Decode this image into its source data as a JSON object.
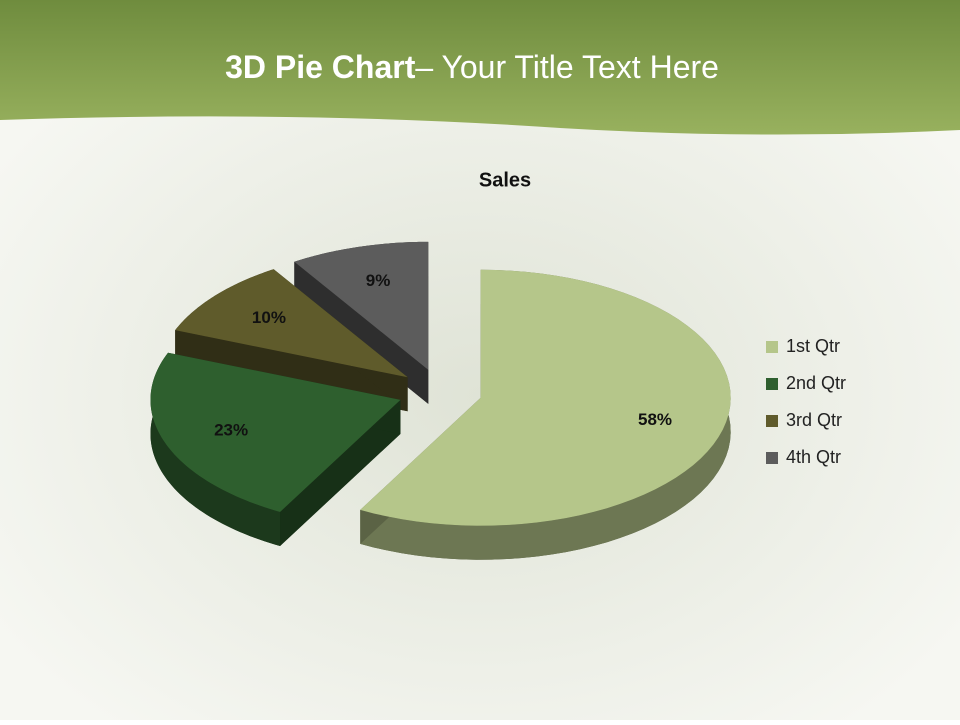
{
  "slide": {
    "title_bold": "3D Pie Chart",
    "title_rest": "– Your Title Text Here"
  },
  "chart_data": {
    "type": "pie",
    "title": "Sales",
    "categories": [
      "1st Qtr",
      "2nd Qtr",
      "3rd Qtr",
      "4th Qtr"
    ],
    "values": [
      58,
      23,
      10,
      9
    ],
    "value_labels": [
      "58%",
      "23%",
      "10%",
      "9%"
    ],
    "colors": [
      "#b5c68a",
      "#2e5f2e",
      "#5f5b2b",
      "#5c5c5c"
    ],
    "legend": "right"
  }
}
